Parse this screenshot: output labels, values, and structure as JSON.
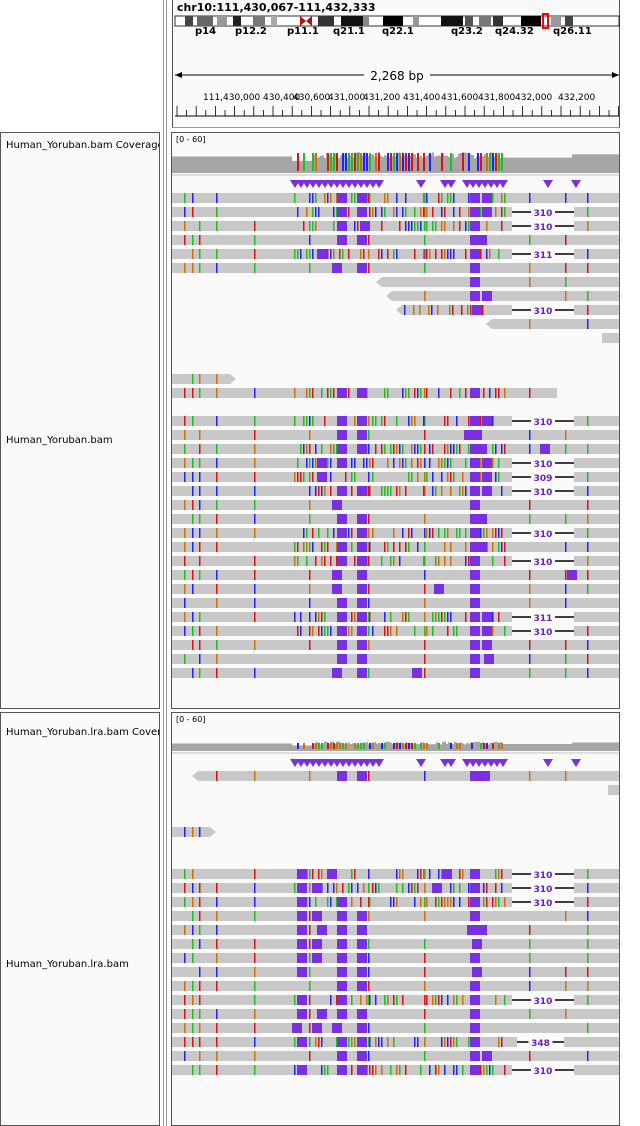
{
  "locus": "chr10:111,430,067-111,432,333",
  "span_label": "2,268 bp",
  "cytobands": [
    "p14",
    "p12.2",
    "p11.1",
    "q21.1",
    "q22.1",
    "q23.2",
    "q24.32",
    "q26.11"
  ],
  "ruler_ticks": [
    "111,430,",
    "000",
    "430,400",
    "430,600",
    "431,000",
    "431,200",
    "431,400",
    "431,600",
    "431,800",
    "432,000",
    "432,200"
  ],
  "tracks": [
    {
      "name": "Human_Yoruban.bam Coverage",
      "range": "[0 - 60]"
    },
    {
      "name": "Human_Yoruban.bam"
    },
    {
      "name": "Human_Yoruban.lra.bam Coverage",
      "range": "[0 - 60]"
    },
    {
      "name": "Human_Yoruban.lra.bam"
    }
  ],
  "insertion_labels_1": [
    "310",
    "310",
    "311",
    "310",
    "310",
    "310",
    "309",
    "310",
    "310",
    "310",
    "311",
    "310"
  ],
  "insertion_labels_2": [
    "310",
    "310",
    "310",
    "310",
    "348",
    "310"
  ],
  "colors": {
    "read": "#c8c8c8",
    "insertion": "#7a2fe0",
    "A": "#1fbf1f",
    "C": "#2222ff",
    "G": "#d17105",
    "T": "#e01010"
  }
}
